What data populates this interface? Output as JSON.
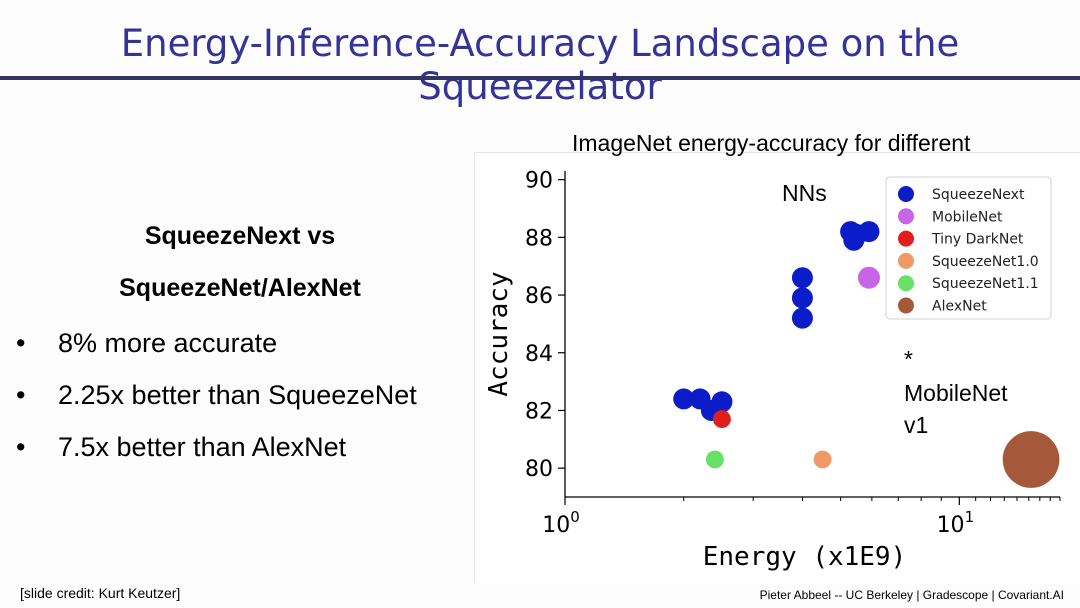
{
  "slide": {
    "title": "Energy-Inference-Accuracy Landscape on the Squeezelator",
    "heading_line1": "SqueezeNext vs",
    "heading_line2": "SqueezeNet/AlexNet",
    "bullets": [
      {
        "symbol": "•",
        "text": "8% more accurate"
      },
      {
        "symbol": "•",
        "text": "2.25x better than SqueezeNet"
      },
      {
        "symbol": "•",
        "text": "7.5x better than AlexNet"
      }
    ],
    "footer_left": "[slide credit: Kurt Keutzer]",
    "footer_right": "Pieter Abbeel -- UC Berkeley | Gradescope | Covariant.AI"
  },
  "chart_data": {
    "type": "scatter",
    "title_line1": "ImageNet  energy-accuracy for different",
    "title_line2": "NNs",
    "xlabel": "Energy (x1E9)",
    "ylabel": "Accuracy",
    "xscale": "log",
    "xlim": [
      1,
      18
    ],
    "ylim": [
      79,
      90.3
    ],
    "yticks": [
      80,
      82,
      84,
      86,
      88,
      90
    ],
    "xticks": [
      {
        "value": 1,
        "base": "10",
        "exp": "0"
      },
      {
        "value": 10,
        "base": "10",
        "exp": "1"
      }
    ],
    "grid": false,
    "legend_position": "top-right",
    "annotation": {
      "star": "*",
      "line1": "MobileNet",
      "line2": "v1"
    },
    "series": [
      {
        "name": "SqueezeNext",
        "color": "#0a1dc8",
        "size": 1,
        "points": [
          [
            2.0,
            82.4
          ],
          [
            2.2,
            82.4
          ],
          [
            2.35,
            82.0
          ],
          [
            2.5,
            82.3
          ],
          [
            4.0,
            86.6
          ],
          [
            4.0,
            85.9
          ],
          [
            4.0,
            85.2
          ],
          [
            5.3,
            88.2
          ],
          [
            5.4,
            87.9
          ],
          [
            5.9,
            88.2
          ],
          [
            5.5,
            88.1
          ]
        ]
      },
      {
        "name": "MobileNet",
        "color": "#c666e6",
        "size": 1.05,
        "points": [
          [
            5.9,
            86.6
          ]
        ]
      },
      {
        "name": "Tiny DarkNet",
        "color": "#e01e1e",
        "size": 0.85,
        "points": [
          [
            2.5,
            81.7
          ]
        ]
      },
      {
        "name": "SqueezeNet1.0",
        "color": "#ee9966",
        "size": 0.85,
        "points": [
          [
            4.5,
            80.3
          ]
        ]
      },
      {
        "name": "SqueezeNet1.1",
        "color": "#66e066",
        "size": 0.85,
        "points": [
          [
            2.4,
            80.3
          ]
        ]
      },
      {
        "name": "AlexNet",
        "color": "#a6583a",
        "size": 2.7,
        "points": [
          [
            15.2,
            80.3
          ]
        ]
      }
    ]
  }
}
